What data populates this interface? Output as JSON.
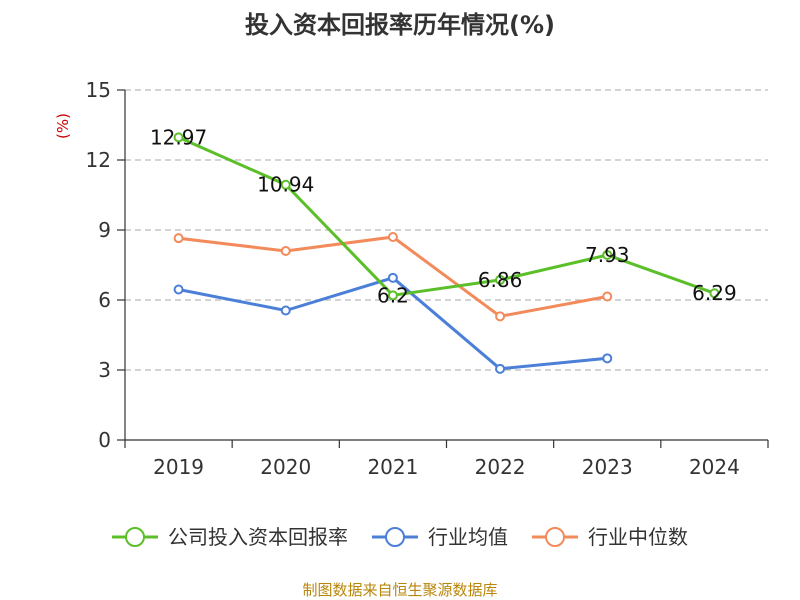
{
  "chart_data": {
    "type": "line",
    "title": "投入资本回报率历年情况(%)",
    "ylabel": "(%)",
    "xlabel": "",
    "categories": [
      "2019",
      "2020",
      "2021",
      "2022",
      "2023",
      "2024"
    ],
    "ylim": [
      0,
      15
    ],
    "yticks": [
      0,
      3,
      6,
      9,
      12,
      15
    ],
    "grid": true,
    "legend_position": "bottom",
    "series": [
      {
        "name": "公司投入资本回报率",
        "color": "#5cbf2a",
        "values": [
          12.97,
          10.94,
          6.2,
          6.86,
          7.93,
          6.29
        ],
        "show_labels": true
      },
      {
        "name": "行业均值",
        "color": "#4b7fd8",
        "values": [
          6.45,
          5.55,
          6.95,
          3.05,
          3.5,
          null
        ],
        "show_labels": false
      },
      {
        "name": "行业中位数",
        "color": "#f28a5a",
        "values": [
          8.65,
          8.1,
          8.7,
          5.3,
          6.15,
          null
        ],
        "show_labels": false
      }
    ]
  },
  "source_text": "制图数据来自恒生聚源数据库"
}
